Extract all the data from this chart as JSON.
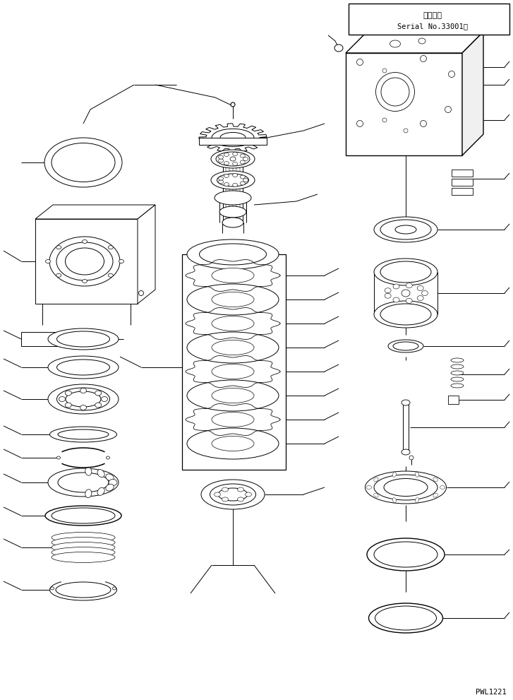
{
  "bg_color": "#ffffff",
  "line_color": "#000000",
  "box_text_1": "適用号機",
  "box_text_2": "Serial No.33001～",
  "watermark": "PWL1221",
  "fig_width": 7.27,
  "fig_height": 9.91,
  "dpi": 100
}
